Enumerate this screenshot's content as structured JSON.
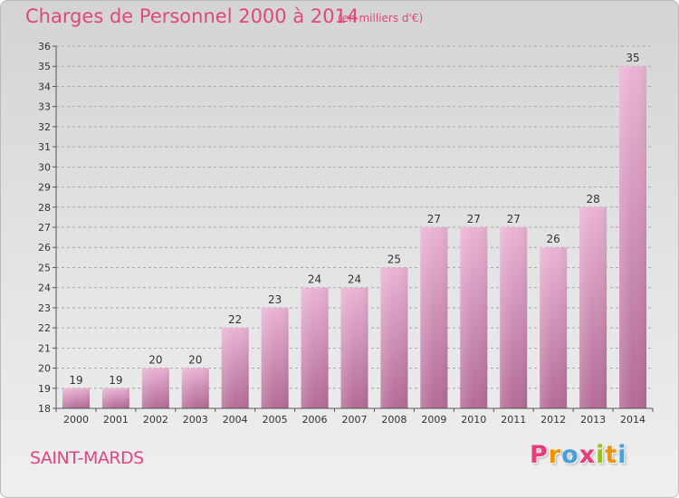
{
  "header": {
    "title": "Charges de Personnel 2000 à 2014",
    "subtitle": "(en milliers d'€)"
  },
  "footer": {
    "commune": "SAINT-MARDS",
    "logo": [
      "P",
      "r",
      "o",
      "x",
      "i",
      "t",
      "i"
    ],
    "logo_colors": [
      "#e73c7e",
      "#f39200",
      "#4a9fd8",
      "#e73c7e",
      "#95c11f",
      "#f39200",
      "#4a9fd8"
    ]
  },
  "colors": {
    "text": "#e0467f",
    "bar_light": "#eab3d4",
    "bar_dark": "#b36b96",
    "grid": "#a8a8a8",
    "axis": "#555555"
  },
  "chart_data": {
    "type": "bar",
    "categories": [
      "2000",
      "2001",
      "2002",
      "2003",
      "2004",
      "2005",
      "2006",
      "2007",
      "2008",
      "2009",
      "2010",
      "2011",
      "2012",
      "2013",
      "2014"
    ],
    "values": [
      19,
      19,
      20,
      20,
      22,
      23,
      24,
      24,
      25,
      27,
      27,
      27,
      26,
      28,
      35
    ],
    "ylim": [
      18,
      36
    ],
    "ytick_step": 1,
    "grid": true,
    "data_labels": true
  }
}
